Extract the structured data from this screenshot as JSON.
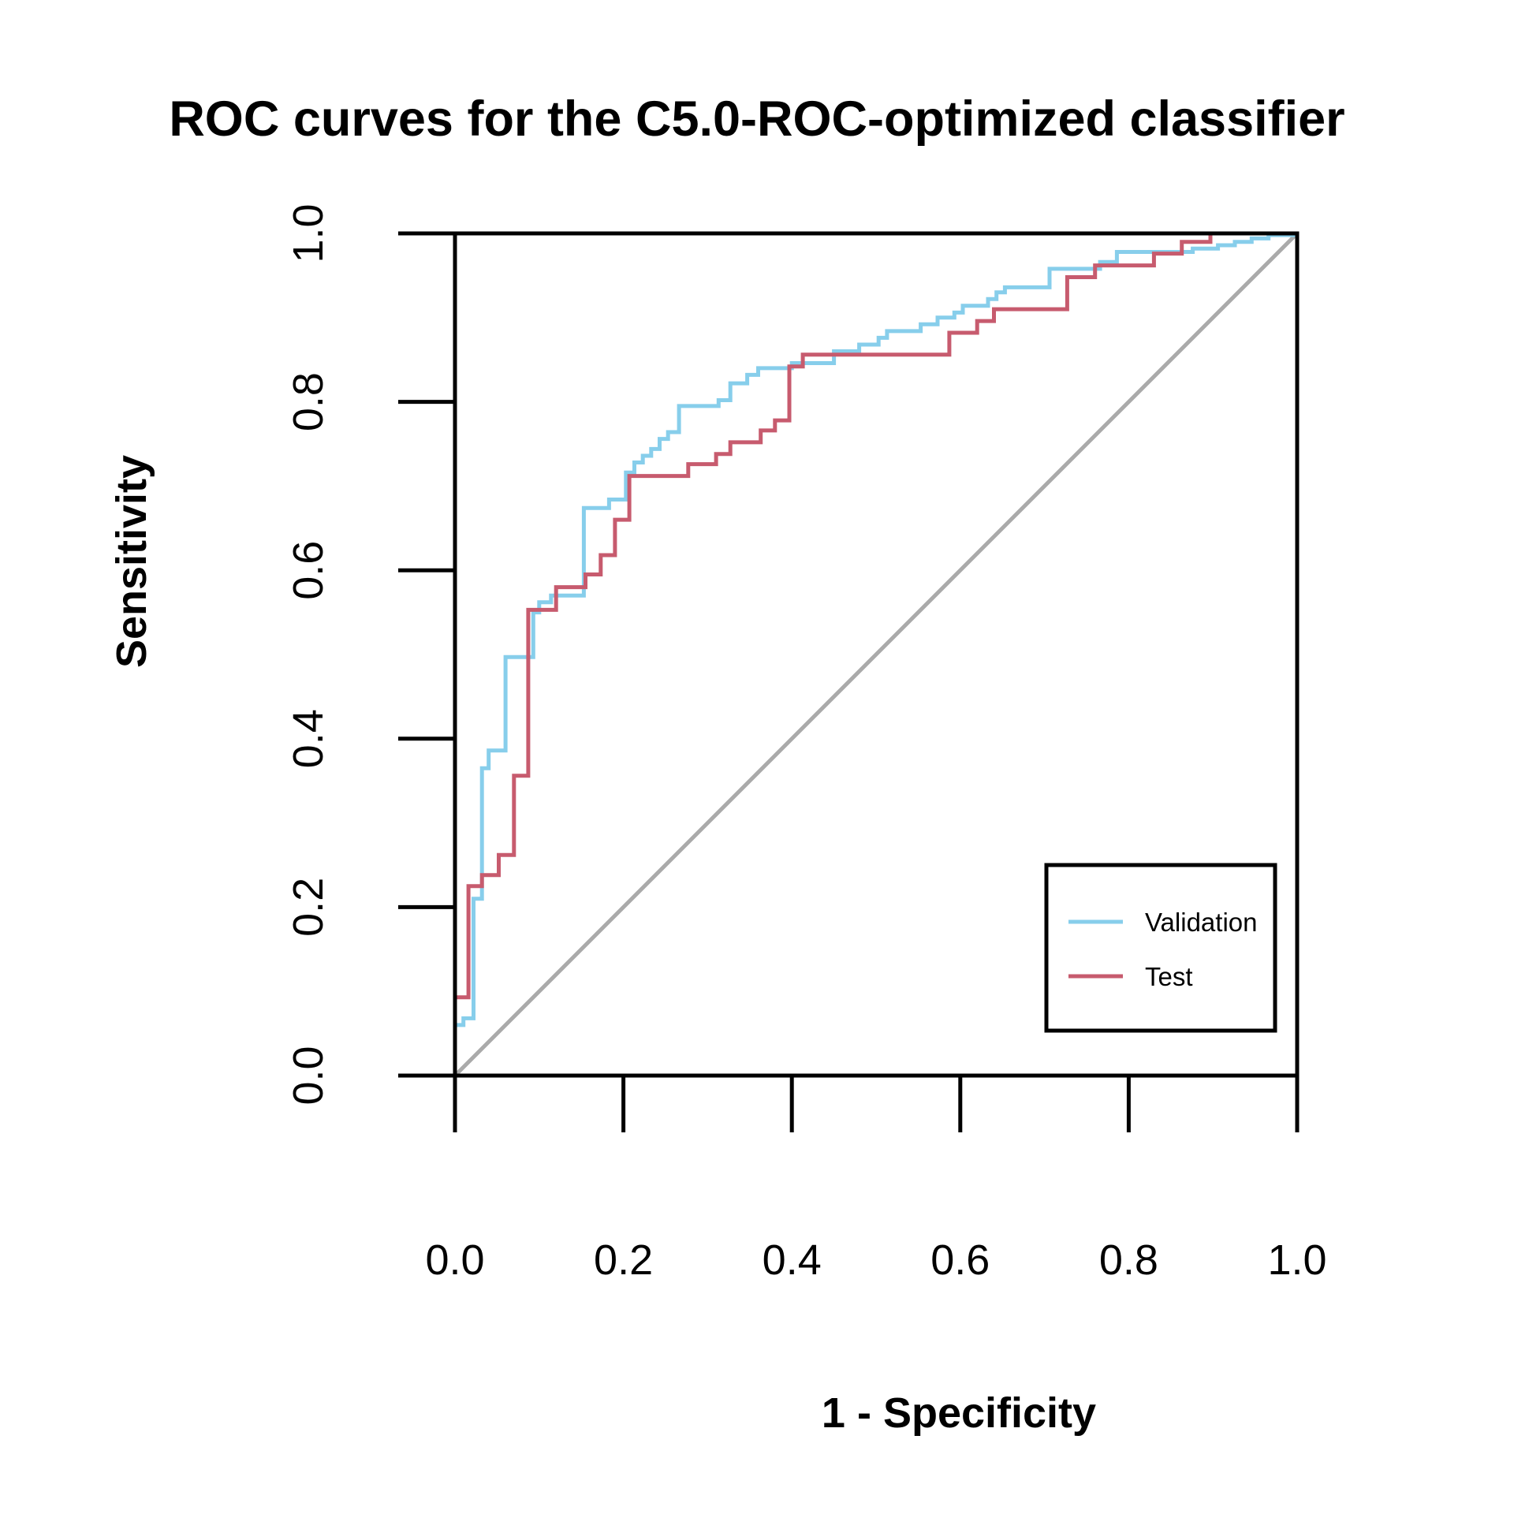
{
  "chart_data": {
    "type": "line",
    "title": "ROC curves for the C5.0-ROC-optimized classifier",
    "xlabel": "1 - Specificity",
    "ylabel": "Sensitivity",
    "xlim": [
      0,
      1
    ],
    "ylim": [
      0,
      1
    ],
    "x_ticks": [
      "0.0",
      "0.2",
      "0.4",
      "0.6",
      "0.8",
      "1.0"
    ],
    "y_ticks": [
      "0.0",
      "0.2",
      "0.4",
      "0.6",
      "0.8",
      "1.0"
    ],
    "grid": false,
    "legend_position": "bottom-right",
    "reference_line": {
      "from": [
        0,
        0
      ],
      "to": [
        1,
        1
      ],
      "color": "#aaaaaa"
    },
    "series": [
      {
        "name": "Validation",
        "color": "#87ceeb",
        "step": true,
        "points": [
          [
            0.0,
            0.0
          ],
          [
            0.0,
            0.06
          ],
          [
            0.01,
            0.06
          ],
          [
            0.01,
            0.068
          ],
          [
            0.022,
            0.068
          ],
          [
            0.022,
            0.21
          ],
          [
            0.032,
            0.21
          ],
          [
            0.032,
            0.365
          ],
          [
            0.04,
            0.365
          ],
          [
            0.04,
            0.386
          ],
          [
            0.06,
            0.386
          ],
          [
            0.06,
            0.497
          ],
          [
            0.093,
            0.497
          ],
          [
            0.093,
            0.55
          ],
          [
            0.1,
            0.55
          ],
          [
            0.1,
            0.562
          ],
          [
            0.114,
            0.562
          ],
          [
            0.114,
            0.57
          ],
          [
            0.153,
            0.57
          ],
          [
            0.153,
            0.674
          ],
          [
            0.183,
            0.674
          ],
          [
            0.183,
            0.684
          ],
          [
            0.203,
            0.684
          ],
          [
            0.203,
            0.716
          ],
          [
            0.213,
            0.716
          ],
          [
            0.213,
            0.728
          ],
          [
            0.223,
            0.728
          ],
          [
            0.223,
            0.736
          ],
          [
            0.233,
            0.736
          ],
          [
            0.233,
            0.744
          ],
          [
            0.243,
            0.744
          ],
          [
            0.243,
            0.756
          ],
          [
            0.253,
            0.756
          ],
          [
            0.253,
            0.764
          ],
          [
            0.266,
            0.764
          ],
          [
            0.266,
            0.795
          ],
          [
            0.313,
            0.795
          ],
          [
            0.313,
            0.802
          ],
          [
            0.327,
            0.802
          ],
          [
            0.327,
            0.822
          ],
          [
            0.347,
            0.822
          ],
          [
            0.347,
            0.832
          ],
          [
            0.36,
            0.832
          ],
          [
            0.36,
            0.84
          ],
          [
            0.4,
            0.84
          ],
          [
            0.4,
            0.846
          ],
          [
            0.45,
            0.846
          ],
          [
            0.45,
            0.86
          ],
          [
            0.48,
            0.86
          ],
          [
            0.48,
            0.868
          ],
          [
            0.503,
            0.868
          ],
          [
            0.503,
            0.876
          ],
          [
            0.513,
            0.876
          ],
          [
            0.513,
            0.884
          ],
          [
            0.553,
            0.884
          ],
          [
            0.553,
            0.892
          ],
          [
            0.573,
            0.892
          ],
          [
            0.573,
            0.9
          ],
          [
            0.593,
            0.9
          ],
          [
            0.593,
            0.906
          ],
          [
            0.603,
            0.906
          ],
          [
            0.603,
            0.914
          ],
          [
            0.633,
            0.914
          ],
          [
            0.633,
            0.922
          ],
          [
            0.643,
            0.922
          ],
          [
            0.643,
            0.93
          ],
          [
            0.653,
            0.93
          ],
          [
            0.653,
            0.936
          ],
          [
            0.706,
            0.936
          ],
          [
            0.706,
            0.958
          ],
          [
            0.766,
            0.958
          ],
          [
            0.766,
            0.966
          ],
          [
            0.786,
            0.966
          ],
          [
            0.786,
            0.978
          ],
          [
            0.876,
            0.978
          ],
          [
            0.876,
            0.982
          ],
          [
            0.906,
            0.982
          ],
          [
            0.906,
            0.986
          ],
          [
            0.926,
            0.986
          ],
          [
            0.926,
            0.99
          ],
          [
            0.946,
            0.99
          ],
          [
            0.946,
            0.994
          ],
          [
            0.966,
            0.994
          ],
          [
            0.966,
            0.998
          ],
          [
            0.996,
            0.998
          ],
          [
            0.996,
            1.0
          ],
          [
            1.0,
            1.0
          ]
        ]
      },
      {
        "name": "Test",
        "color": "#c75b6e",
        "step": true,
        "points": [
          [
            0.0,
            0.0
          ],
          [
            0.0,
            0.093
          ],
          [
            0.016,
            0.093
          ],
          [
            0.016,
            0.225
          ],
          [
            0.032,
            0.225
          ],
          [
            0.032,
            0.238
          ],
          [
            0.052,
            0.238
          ],
          [
            0.052,
            0.262
          ],
          [
            0.07,
            0.262
          ],
          [
            0.07,
            0.356
          ],
          [
            0.087,
            0.356
          ],
          [
            0.087,
            0.553
          ],
          [
            0.12,
            0.553
          ],
          [
            0.12,
            0.58
          ],
          [
            0.155,
            0.58
          ],
          [
            0.155,
            0.595
          ],
          [
            0.173,
            0.595
          ],
          [
            0.173,
            0.618
          ],
          [
            0.19,
            0.618
          ],
          [
            0.19,
            0.66
          ],
          [
            0.207,
            0.66
          ],
          [
            0.207,
            0.712
          ],
          [
            0.277,
            0.712
          ],
          [
            0.277,
            0.726
          ],
          [
            0.31,
            0.726
          ],
          [
            0.31,
            0.738
          ],
          [
            0.327,
            0.738
          ],
          [
            0.327,
            0.752
          ],
          [
            0.363,
            0.752
          ],
          [
            0.363,
            0.766
          ],
          [
            0.38,
            0.766
          ],
          [
            0.38,
            0.778
          ],
          [
            0.397,
            0.778
          ],
          [
            0.397,
            0.842
          ],
          [
            0.413,
            0.842
          ],
          [
            0.413,
            0.856
          ],
          [
            0.587,
            0.856
          ],
          [
            0.587,
            0.882
          ],
          [
            0.62,
            0.882
          ],
          [
            0.62,
            0.896
          ],
          [
            0.64,
            0.896
          ],
          [
            0.64,
            0.91
          ],
          [
            0.727,
            0.91
          ],
          [
            0.727,
            0.948
          ],
          [
            0.76,
            0.948
          ],
          [
            0.76,
            0.962
          ],
          [
            0.83,
            0.962
          ],
          [
            0.83,
            0.976
          ],
          [
            0.863,
            0.976
          ],
          [
            0.863,
            0.99
          ],
          [
            0.897,
            0.99
          ],
          [
            0.897,
            1.0
          ],
          [
            1.0,
            1.0
          ]
        ]
      }
    ]
  }
}
